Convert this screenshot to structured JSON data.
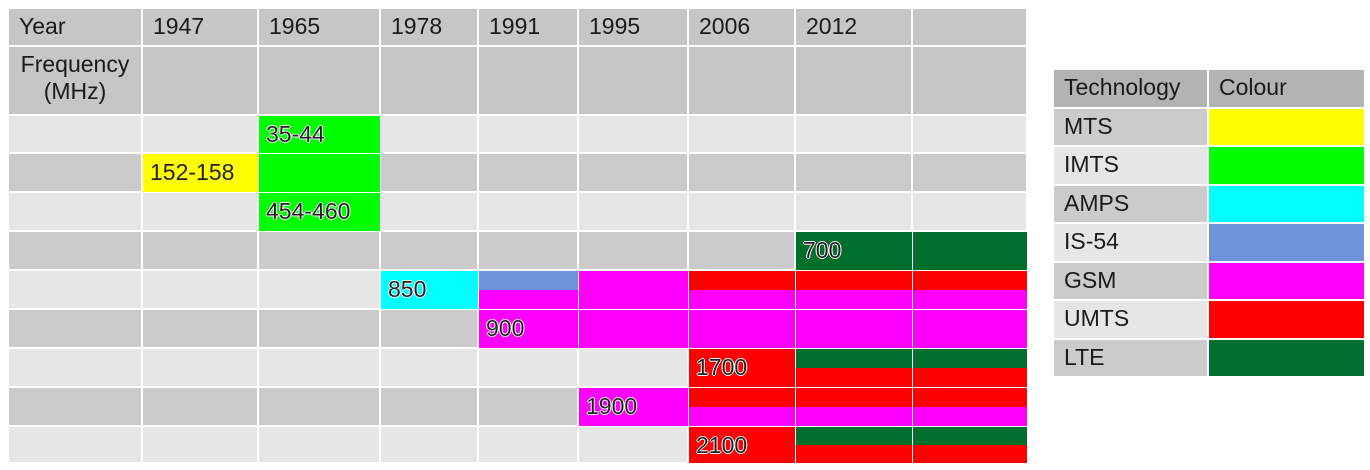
{
  "table": {
    "header": [
      "Year",
      "1947",
      "1965",
      "1978",
      "1991",
      "1995",
      "2006",
      "2012"
    ],
    "row_label": "Frequency (MHz)",
    "bands": [
      "35-44",
      "152-158",
      "454-460",
      "700",
      "850",
      "900",
      "1700",
      "1900",
      "2100"
    ]
  },
  "legend": {
    "header": [
      "Technology",
      "Colour"
    ],
    "rows": [
      {
        "name": "MTS",
        "color": "#ffff00"
      },
      {
        "name": "IMTS",
        "color": "#00ff00"
      },
      {
        "name": "AMPS",
        "color": "#00ffff"
      },
      {
        "name": "IS-54",
        "color": "#6f93db"
      },
      {
        "name": "GSM",
        "color": "#ff00ff"
      },
      {
        "name": "UMTS",
        "color": "#ff0000"
      },
      {
        "name": "LTE",
        "color": "#006f2d"
      }
    ]
  }
}
